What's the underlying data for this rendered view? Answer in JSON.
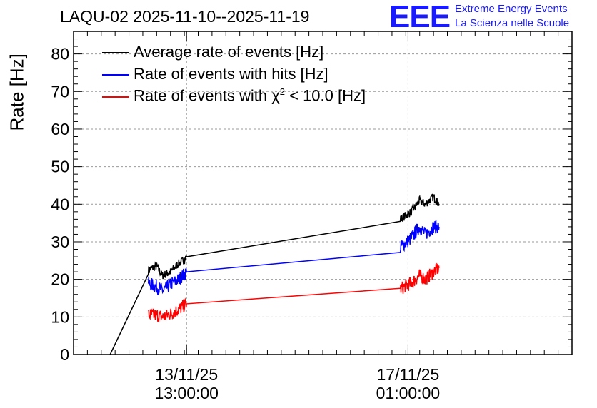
{
  "chart_data": {
    "type": "line",
    "title": "LAQU-02 2025-11-10--2025-11-19",
    "ylabel": "Rate [Hz]",
    "xlabel": "",
    "ylim": [
      0,
      86
    ],
    "xlim_days": [
      10.0,
      19.0
    ],
    "x_ticks": [
      {
        "date": "13/11/25",
        "time": "13:00:00",
        "day": 12.04
      },
      {
        "date": "17/11/25",
        "time": "01:00:00",
        "day": 16.04
      }
    ],
    "y_ticks": [
      0,
      10,
      20,
      30,
      40,
      50,
      60,
      70,
      80
    ],
    "grid": true,
    "legend_position": "top-left",
    "series": [
      {
        "name": "Average rate of events [Hz]",
        "color": "#000000",
        "points": [
          [
            10.66,
            0
          ],
          [
            11.35,
            22.5
          ],
          [
            11.5,
            23.5
          ],
          [
            11.6,
            21
          ],
          [
            11.75,
            22
          ],
          [
            11.88,
            24
          ],
          [
            11.98,
            25
          ],
          [
            12.04,
            26
          ],
          [
            15.9,
            36
          ],
          [
            16.1,
            38
          ],
          [
            16.25,
            41
          ],
          [
            16.35,
            40
          ],
          [
            16.5,
            42
          ],
          [
            16.6,
            40
          ]
        ]
      },
      {
        "name": "Rate of events with hits [Hz]",
        "color": "#0000ff",
        "points": [
          [
            11.35,
            19
          ],
          [
            11.5,
            18
          ],
          [
            11.62,
            17
          ],
          [
            11.78,
            19
          ],
          [
            11.9,
            20
          ],
          [
            12.04,
            22
          ],
          [
            15.9,
            28.5
          ],
          [
            16.1,
            31
          ],
          [
            16.25,
            34
          ],
          [
            16.35,
            32
          ],
          [
            16.5,
            34
          ],
          [
            16.6,
            34
          ]
        ]
      },
      {
        "name": "Rate of events with χ² < 10.0 [Hz]",
        "color": "#ff0000",
        "points": [
          [
            11.35,
            10.5
          ],
          [
            11.5,
            10.5
          ],
          [
            11.62,
            10
          ],
          [
            11.78,
            11
          ],
          [
            11.9,
            12
          ],
          [
            12.04,
            13.5
          ],
          [
            15.9,
            17.5
          ],
          [
            16.1,
            19
          ],
          [
            16.25,
            21
          ],
          [
            16.35,
            20
          ],
          [
            16.5,
            22
          ],
          [
            16.6,
            23
          ]
        ]
      }
    ]
  },
  "legend": {
    "item1": "Average rate of events [Hz]",
    "item2": "Rate of events with hits [Hz]",
    "item3_prefix": "Rate of events with χ",
    "item3_sup": "2",
    "item3_suffix": " < 10.0 [Hz]"
  },
  "logo": {
    "mark": "EEE",
    "line1": "Extreme Energy Events",
    "line2": "La Scienza nelle Scuole",
    "color": "#1a1aff"
  }
}
